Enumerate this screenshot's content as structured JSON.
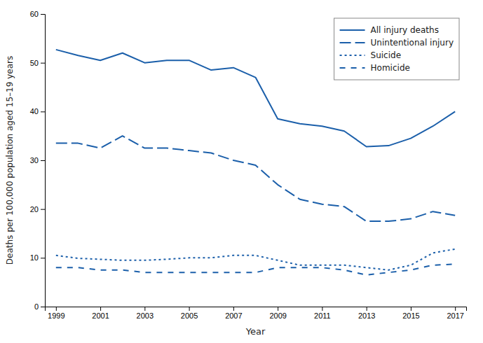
{
  "chart_data": {
    "type": "line",
    "xlabel": "Year",
    "ylabel": "Deaths per 100,000 population aged 15–19 years",
    "x": [
      1999,
      2000,
      2001,
      2002,
      2003,
      2004,
      2005,
      2006,
      2007,
      2008,
      2009,
      2010,
      2011,
      2012,
      2013,
      2014,
      2015,
      2016,
      2017
    ],
    "series": [
      {
        "name": "All injury deaths",
        "color": "#1B5FAA",
        "line_style": "solid",
        "values": [
          52.7,
          51.5,
          50.5,
          52.0,
          50.0,
          50.5,
          50.5,
          48.5,
          49.0,
          47.0,
          38.5,
          37.5,
          37.0,
          36.0,
          32.8,
          33.0,
          34.5,
          37.0,
          40.0
        ]
      },
      {
        "name": "Unintentional injury",
        "color": "#1B5FAA",
        "line_style": "long-dash",
        "values": [
          33.5,
          33.5,
          32.5,
          35.0,
          32.5,
          32.5,
          32.0,
          31.5,
          30.0,
          29.0,
          25.0,
          22.0,
          21.0,
          20.5,
          17.5,
          17.5,
          18.0,
          19.5,
          18.7
        ]
      },
      {
        "name": "Suicide",
        "color": "#1B5FAA",
        "line_style": "dotted",
        "values": [
          10.5,
          9.9,
          9.7,
          9.5,
          9.5,
          9.7,
          10.0,
          10.0,
          10.5,
          10.5,
          9.5,
          8.5,
          8.5,
          8.5,
          8.0,
          7.5,
          8.5,
          11.0,
          11.8
        ]
      },
      {
        "name": "Homicide",
        "color": "#1B5FAA",
        "line_style": "dashed",
        "values": [
          8.0,
          8.0,
          7.5,
          7.5,
          7.0,
          7.0,
          7.0,
          7.0,
          7.0,
          7.0,
          8.0,
          8.0,
          8.0,
          7.5,
          6.5,
          7.0,
          7.5,
          8.5,
          8.7
        ]
      }
    ],
    "xlim": [
      1998.5,
      2017.5
    ],
    "xticks": [
      1999,
      2001,
      2003,
      2005,
      2007,
      2009,
      2011,
      2013,
      2015,
      2017
    ],
    "ylim": [
      0,
      60
    ],
    "yticks": [
      0,
      10,
      20,
      30,
      40,
      50,
      60
    ],
    "legend": "upper right",
    "grid": false
  }
}
